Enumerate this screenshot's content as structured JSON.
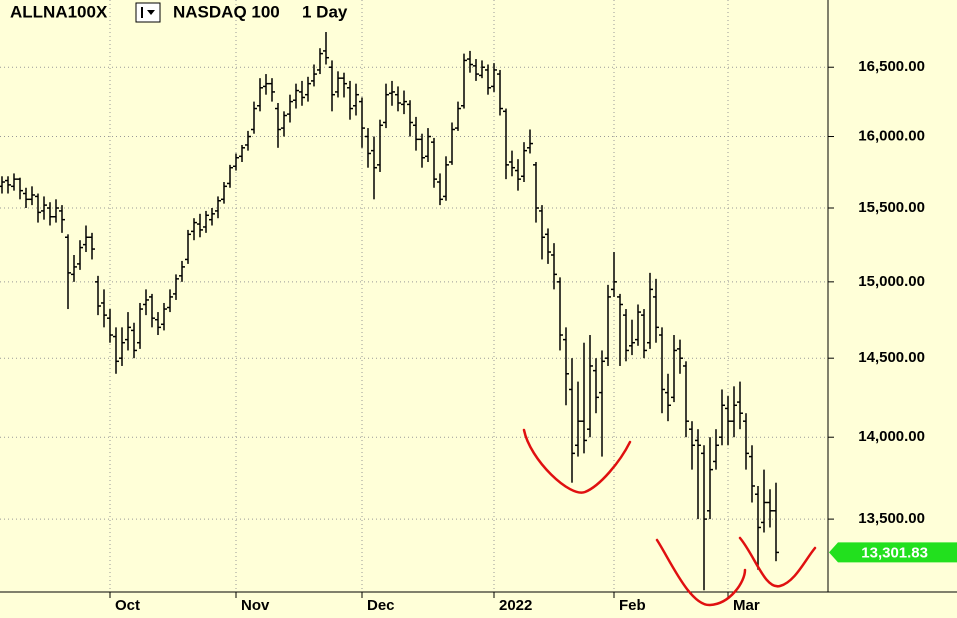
{
  "chart_data": {
    "type": "ohlc",
    "title": "ALLNA100X",
    "subtitle": "NASDAQ 100",
    "interval": "1 Day",
    "log_scale": true,
    "grid": true,
    "color": "#000000",
    "ylim": [
      13070,
      17000
    ],
    "yticks": [
      {
        "value": 13500,
        "label": "13,500.00"
      },
      {
        "value": 14000,
        "label": "14,000.00"
      },
      {
        "value": 14500,
        "label": "14,500.00"
      },
      {
        "value": 15000,
        "label": "15,000.00"
      },
      {
        "value": 15500,
        "label": "15,500.00"
      },
      {
        "value": 16000,
        "label": "16,000.00"
      },
      {
        "value": 16500,
        "label": "16,500.00"
      }
    ],
    "last": {
      "value": 13301.83,
      "label": "13,301.83",
      "color": "#22e01e"
    },
    "categories": [
      null,
      null,
      null,
      null,
      null,
      null,
      null,
      null,
      null,
      null,
      null,
      null,
      null,
      null,
      null,
      null,
      null,
      null,
      "Oct",
      null,
      null,
      null,
      null,
      null,
      null,
      null,
      null,
      null,
      null,
      null,
      null,
      null,
      null,
      null,
      null,
      null,
      null,
      null,
      null,
      "Nov",
      null,
      null,
      null,
      null,
      null,
      null,
      null,
      null,
      null,
      null,
      null,
      null,
      null,
      null,
      null,
      null,
      null,
      null,
      null,
      null,
      "Dec",
      null,
      null,
      null,
      null,
      null,
      null,
      null,
      null,
      null,
      null,
      null,
      null,
      null,
      null,
      null,
      null,
      null,
      null,
      null,
      null,
      null,
      "2022",
      null,
      null,
      null,
      null,
      null,
      null,
      null,
      null,
      null,
      null,
      null,
      null,
      null,
      null,
      null,
      null,
      null,
      null,
      null,
      "Feb",
      null,
      null,
      null,
      null,
      null,
      null,
      null,
      null,
      null,
      null,
      null,
      null,
      null,
      null,
      null,
      null,
      null,
      null,
      "Mar",
      null,
      null,
      null,
      null,
      null,
      null,
      null,
      null
    ],
    "values": [
      [
        15650,
        15720,
        15600,
        15680
      ],
      [
        15690,
        15720,
        15600,
        15660
      ],
      [
        15650,
        15740,
        15620,
        15700
      ],
      [
        15700,
        15710,
        15560,
        15620
      ],
      [
        15600,
        15640,
        15500,
        15560
      ],
      [
        15560,
        15650,
        15520,
        15590
      ],
      [
        15580,
        15600,
        15400,
        15470
      ],
      [
        15480,
        15580,
        15420,
        15520
      ],
      [
        15500,
        15540,
        15380,
        15440
      ],
      [
        15440,
        15560,
        15400,
        15500
      ],
      [
        15480,
        15520,
        15330,
        15420
      ],
      [
        15300,
        15320,
        14820,
        15060
      ],
      [
        15050,
        15180,
        15000,
        15100
      ],
      [
        15120,
        15280,
        15080,
        15230
      ],
      [
        15250,
        15380,
        15200,
        15300
      ],
      [
        15300,
        15330,
        15150,
        15220
      ],
      [
        15000,
        15040,
        14780,
        14840
      ],
      [
        14860,
        14950,
        14700,
        14780
      ],
      [
        14760,
        14820,
        14600,
        14650
      ],
      [
        14640,
        14700,
        14400,
        14480
      ],
      [
        14500,
        14700,
        14450,
        14600
      ],
      [
        14620,
        14800,
        14550,
        14700
      ],
      [
        14680,
        14730,
        14500,
        14550
      ],
      [
        14600,
        14860,
        14560,
        14820
      ],
      [
        14850,
        14950,
        14780,
        14880
      ],
      [
        14900,
        14920,
        14700,
        14760
      ],
      [
        14750,
        14800,
        14650,
        14700
      ],
      [
        14720,
        14860,
        14680,
        14820
      ],
      [
        14830,
        14950,
        14800,
        14900
      ],
      [
        14920,
        15050,
        14880,
        15020
      ],
      [
        15040,
        15140,
        15000,
        15100
      ],
      [
        15150,
        15350,
        15120,
        15320
      ],
      [
        15340,
        15430,
        15280,
        15400
      ],
      [
        15390,
        15460,
        15300,
        15350
      ],
      [
        15370,
        15480,
        15330,
        15450
      ],
      [
        15420,
        15500,
        15380,
        15460
      ],
      [
        15480,
        15580,
        15430,
        15550
      ],
      [
        15560,
        15680,
        15530,
        15650
      ],
      [
        15670,
        15800,
        15640,
        15780
      ],
      [
        15790,
        15880,
        15760,
        15850
      ],
      [
        15860,
        15940,
        15820,
        15920
      ],
      [
        15940,
        16040,
        15900,
        16000
      ],
      [
        16050,
        16250,
        16020,
        16200
      ],
      [
        16220,
        16420,
        16180,
        16350
      ],
      [
        16360,
        16450,
        16300,
        16380
      ],
      [
        16380,
        16420,
        16250,
        16320
      ],
      [
        16200,
        16240,
        15920,
        16050
      ],
      [
        16060,
        16180,
        16000,
        16150
      ],
      [
        16160,
        16300,
        16100,
        16250
      ],
      [
        16260,
        16380,
        16200,
        16330
      ],
      [
        16320,
        16400,
        16220,
        16280
      ],
      [
        16300,
        16430,
        16250,
        16380
      ],
      [
        16400,
        16520,
        16360,
        16450
      ],
      [
        16480,
        16640,
        16450,
        16600
      ],
      [
        16620,
        16760,
        16520,
        16570
      ],
      [
        16500,
        16550,
        16180,
        16300
      ],
      [
        16320,
        16470,
        16280,
        16420
      ],
      [
        16420,
        16460,
        16280,
        16380
      ],
      [
        16350,
        16400,
        16120,
        16200
      ],
      [
        16220,
        16380,
        16150,
        16300
      ],
      [
        16250,
        16280,
        15920,
        16060
      ],
      [
        16000,
        16060,
        15780,
        15880
      ],
      [
        15900,
        16000,
        15560,
        15780
      ],
      [
        15800,
        16120,
        15750,
        16080
      ],
      [
        16100,
        16380,
        16060,
        16300
      ],
      [
        16310,
        16400,
        16220,
        16320
      ],
      [
        16300,
        16360,
        16180,
        16240
      ],
      [
        16230,
        16330,
        16160,
        16250
      ],
      [
        16230,
        16260,
        16000,
        16100
      ],
      [
        16080,
        16140,
        15900,
        15980
      ],
      [
        15980,
        16020,
        15780,
        15850
      ],
      [
        15860,
        16060,
        15820,
        16000
      ],
      [
        15960,
        15990,
        15640,
        15700
      ],
      [
        15680,
        15740,
        15520,
        15560
      ],
      [
        15580,
        15860,
        15550,
        15800
      ],
      [
        15820,
        16100,
        15800,
        16050
      ],
      [
        16060,
        16250,
        16040,
        16200
      ],
      [
        16220,
        16600,
        16200,
        16550
      ],
      [
        16560,
        16620,
        16460,
        16520
      ],
      [
        16510,
        16560,
        16400,
        16450
      ],
      [
        16440,
        16550,
        16420,
        16500
      ],
      [
        16480,
        16520,
        16300,
        16350
      ],
      [
        16360,
        16530,
        16320,
        16480
      ],
      [
        16450,
        16480,
        16150,
        16200
      ],
      [
        16180,
        16200,
        15700,
        15800
      ],
      [
        15820,
        15900,
        15720,
        15780
      ],
      [
        15760,
        15840,
        15620,
        15700
      ],
      [
        15720,
        15960,
        15680,
        15900
      ],
      [
        15920,
        16050,
        15880,
        15950
      ],
      [
        15800,
        15820,
        15400,
        15500
      ],
      [
        15480,
        15520,
        15150,
        15300
      ],
      [
        15320,
        15360,
        15120,
        15200
      ],
      [
        15180,
        15260,
        14950,
        15050
      ],
      [
        15000,
        15030,
        14550,
        14650
      ],
      [
        14620,
        14700,
        14200,
        14400
      ],
      [
        14300,
        14500,
        13720,
        13900
      ],
      [
        13950,
        14350,
        13880,
        14100
      ],
      [
        14100,
        14600,
        13900,
        13980
      ],
      [
        14050,
        14650,
        14000,
        14450
      ],
      [
        14420,
        14500,
        14150,
        14250
      ],
      [
        14280,
        14550,
        13880,
        14480
      ],
      [
        14500,
        14980,
        14450,
        14900
      ],
      [
        14950,
        15200,
        14900,
        15000
      ],
      [
        14900,
        14920,
        14450,
        14850
      ],
      [
        14780,
        14820,
        14480,
        14550
      ],
      [
        14580,
        14750,
        14520,
        14600
      ],
      [
        14620,
        14850,
        14580,
        14800
      ],
      [
        14780,
        14820,
        14500,
        14550
      ],
      [
        14600,
        15060,
        14560,
        14950
      ],
      [
        14900,
        15020,
        14600,
        14700
      ],
      [
        14650,
        14700,
        14150,
        14300
      ],
      [
        14280,
        14400,
        14100,
        14200
      ],
      [
        14250,
        14650,
        14220,
        14550
      ],
      [
        14560,
        14620,
        14400,
        14500
      ],
      [
        14450,
        14480,
        14000,
        14100
      ],
      [
        14050,
        14100,
        13800,
        13950
      ],
      [
        13980,
        14050,
        13500,
        13950
      ],
      [
        13900,
        13950,
        13080,
        13500
      ],
      [
        13550,
        14000,
        13500,
        13800
      ],
      [
        13850,
        14050,
        13800,
        13950
      ],
      [
        14000,
        14300,
        13950,
        14200
      ],
      [
        14180,
        14260,
        13950,
        14100
      ],
      [
        14100,
        14320,
        14000,
        14200
      ],
      [
        14220,
        14350,
        14050,
        14150
      ],
      [
        14100,
        14150,
        13800,
        13900
      ],
      [
        13880,
        13950,
        13600,
        13700
      ],
      [
        13650,
        13700,
        13200,
        13450
      ],
      [
        13480,
        13800,
        13420,
        13600
      ],
      [
        13600,
        13680,
        13450,
        13550
      ],
      [
        13550,
        13720,
        13250,
        13301.83
      ]
    ]
  }
}
